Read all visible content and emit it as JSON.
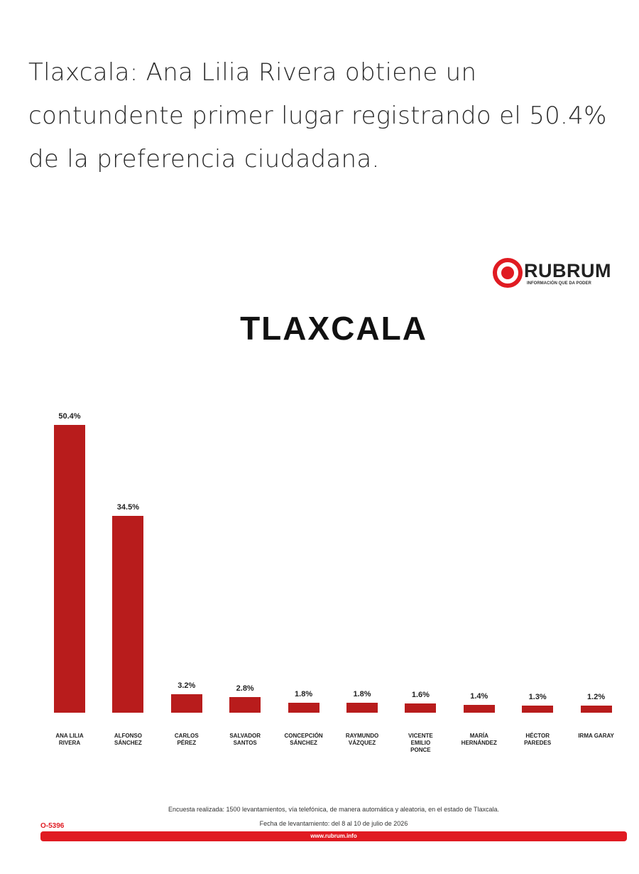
{
  "headline": "Tlaxcala: Ana Lilia Rivera obtiene un contundente primer lugar registrando el 50.4% de la preferencia ciudadana.",
  "brand": {
    "name": "RUBRUM",
    "tagline": "INFORMACIÓN QUE DA PODER"
  },
  "chart_data": {
    "type": "bar",
    "title": "TLAXCALA",
    "categories": [
      "ANA LILIA RIVERA",
      "ALFONSO SÁNCHEZ",
      "CARLOS PÉREZ",
      "SALVADOR SANTOS",
      "CONCEPCIÓN SÁNCHEZ",
      "RAYMUNDO VÁZQUEZ",
      "VICENTE EMILIO PONCE",
      "MARÍA HERNÁNDEZ",
      "HÉCTOR PAREDES",
      "IRMA GARAY"
    ],
    "values": [
      50.4,
      34.5,
      3.2,
      2.8,
      1.8,
      1.8,
      1.6,
      1.4,
      1.3,
      1.2
    ],
    "value_labels": [
      "50.4%",
      "34.5%",
      "3.2%",
      "2.8%",
      "1.8%",
      "1.8%",
      "1.6%",
      "1.4%",
      "1.3%",
      "1.2%"
    ],
    "color": "#b81c1c"
  },
  "footer": {
    "note": "Encuesta realizada: 1500 levantamientos, vía telefónica, de manera automática y aleatoria, en el estado de Tlaxcala.",
    "date": "Fecha de levantamiento: del 8 al 10 de julio de 2026",
    "code": "O-5396",
    "url": "www.rubrum.info"
  }
}
